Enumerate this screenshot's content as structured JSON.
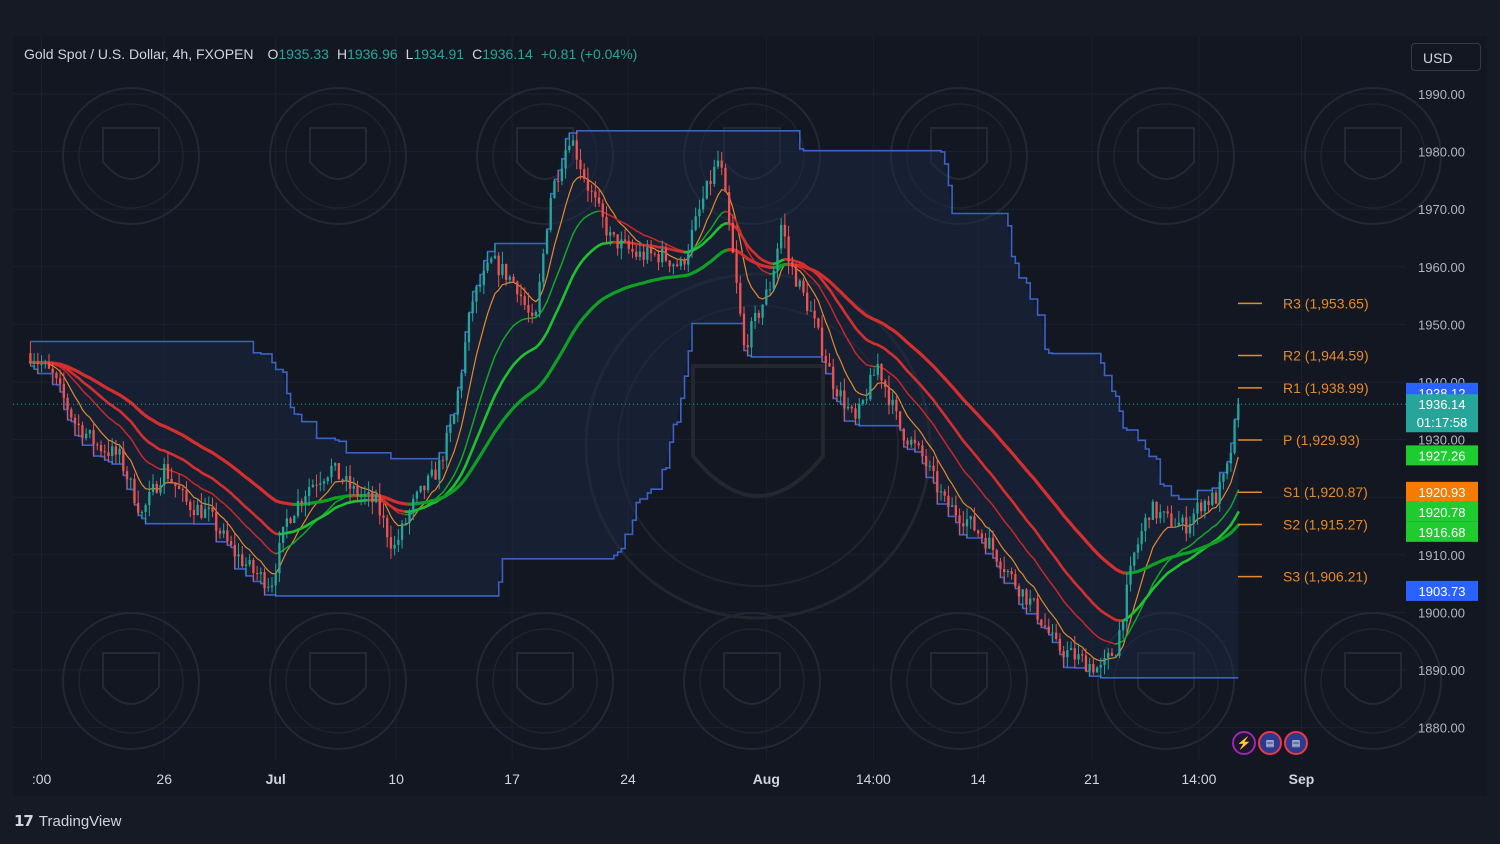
{
  "header": {
    "symbol": "Gold Spot / U.S. Dollar, 4h, FXOPEN",
    "open_label": "O",
    "open": "1935.33",
    "high_label": "H",
    "high": "1936.96",
    "low_label": "L",
    "low": "1934.91",
    "close_label": "C",
    "close": "1936.14",
    "change": "+0.81 (+0.04%)"
  },
  "currency_button": "USD",
  "branding": {
    "logo_glyph": "𝟭𝟳",
    "name": "TradingView"
  },
  "colors": {
    "bg": "#131722",
    "up": "#26a69a",
    "down": "#ef5350",
    "channel": "#3a62c9",
    "ema_green": "#1fc12f",
    "ema_red": "#d32f2f",
    "orange": "#e58a2a"
  },
  "events": [
    "bolt-icon",
    "us-flag-icon",
    "us-flag-icon"
  ],
  "chart_data": {
    "type": "candlestick",
    "ylim": [
      1875,
      1995
    ],
    "y_ticks": [
      "1990.00",
      "1980.00",
      "1970.00",
      "1960.00",
      "1950.00",
      "1940.00",
      "1930.00",
      "1920.00",
      "1910.00",
      "1900.00",
      "1890.00",
      "1880.00"
    ],
    "x_ticks": [
      {
        "label": ":00",
        "day": -1.5,
        "bold": false
      },
      {
        "label": "26",
        "day": 4.0,
        "bold": false
      },
      {
        "label": "Jul",
        "day": 9.0,
        "bold": true
      },
      {
        "label": "10",
        "day": 14.4,
        "bold": false
      },
      {
        "label": "17",
        "day": 19.6,
        "bold": false
      },
      {
        "label": "24",
        "day": 24.8,
        "bold": false
      },
      {
        "label": "Aug",
        "day": 31.0,
        "bold": true
      },
      {
        "label": "14:00",
        "day": 35.8,
        "bold": false
      },
      {
        "label": "14",
        "day": 40.5,
        "bold": false
      },
      {
        "label": "21",
        "day": 45.6,
        "bold": false
      },
      {
        "label": "14:00",
        "day": 50.4,
        "bold": false
      },
      {
        "label": "Sep",
        "day": 55.0,
        "bold": true
      }
    ],
    "anchors": [
      [
        -2,
        1945
      ],
      [
        -1,
        1941
      ],
      [
        0,
        1933
      ],
      [
        1,
        1929
      ],
      [
        2,
        1927
      ],
      [
        3,
        1917
      ],
      [
        4,
        1925
      ],
      [
        5,
        1919
      ],
      [
        6,
        1917
      ],
      [
        7,
        1911
      ],
      [
        8,
        1907
      ],
      [
        8.8,
        1905
      ],
      [
        9.5,
        1916
      ],
      [
        10.5,
        1922
      ],
      [
        11.5,
        1925
      ],
      [
        12.5,
        1921
      ],
      [
        13.5,
        1919
      ],
      [
        14.3,
        1911
      ],
      [
        15.2,
        1919
      ],
      [
        16.3,
        1925
      ],
      [
        17.0,
        1934
      ],
      [
        17.8,
        1954
      ],
      [
        18.7,
        1961
      ],
      [
        19.8,
        1957
      ],
      [
        20.6,
        1949
      ],
      [
        21.3,
        1972
      ],
      [
        22.2,
        1983
      ],
      [
        23.0,
        1974
      ],
      [
        24.0,
        1965
      ],
      [
        25.2,
        1962
      ],
      [
        26.3,
        1962
      ],
      [
        27.2,
        1960
      ],
      [
        28.2,
        1972
      ],
      [
        28.9,
        1979
      ],
      [
        29.4,
        1965
      ],
      [
        30.0,
        1946
      ],
      [
        31.2,
        1957
      ],
      [
        31.7,
        1968
      ],
      [
        32.0,
        1961
      ],
      [
        33.0,
        1952
      ],
      [
        34.0,
        1940
      ],
      [
        35.0,
        1933
      ],
      [
        36.0,
        1943
      ],
      [
        37.0,
        1932
      ],
      [
        38.0,
        1927
      ],
      [
        39.0,
        1919
      ],
      [
        40.0,
        1916
      ],
      [
        41.0,
        1912
      ],
      [
        42.0,
        1906
      ],
      [
        43.0,
        1901
      ],
      [
        44.0,
        1894
      ],
      [
        45.0,
        1892
      ],
      [
        46.0,
        1890
      ],
      [
        46.7,
        1894
      ],
      [
        47.5,
        1910
      ],
      [
        48.2,
        1918
      ],
      [
        49.0,
        1916
      ],
      [
        49.8,
        1915
      ],
      [
        50.5,
        1919
      ],
      [
        51.2,
        1920
      ],
      [
        51.7,
        1925
      ],
      [
        52.0,
        1932
      ],
      [
        52.3,
        1936
      ]
    ],
    "last_price": 1936.14,
    "current_countdown": "01:17:58",
    "price_labels": [
      {
        "value": 1938.12,
        "text": "1938.12",
        "color": "#2962ff"
      },
      {
        "value": 1927.26,
        "text": "1927.26",
        "color": "#1fcc30"
      },
      {
        "value": 1920.93,
        "text": "1920.93",
        "color": "#f57c00"
      },
      {
        "value": 1920.78,
        "text": "1920.78",
        "color": "#1fcc30"
      },
      {
        "value": 1916.68,
        "text": "1916.68",
        "color": "#1fcc30"
      },
      {
        "value": 1903.73,
        "text": "1903.73",
        "color": "#2962ff"
      }
    ],
    "pivots": [
      {
        "name": "R3",
        "value": 1953.65,
        "text": "R3 (1,953.65)"
      },
      {
        "name": "R2",
        "value": 1944.59,
        "text": "R2 (1,944.59)"
      },
      {
        "name": "R1",
        "value": 1938.99,
        "text": "R1 (1,938.99)"
      },
      {
        "name": "P",
        "value": 1929.93,
        "text": "P (1,929.93)"
      },
      {
        "name": "S1",
        "value": 1920.87,
        "text": "S1 (1,920.87)"
      },
      {
        "name": "S2",
        "value": 1915.27,
        "text": "S2 (1,915.27)"
      },
      {
        "name": "S3",
        "value": 1906.21,
        "text": "S3 (1,906.21)"
      }
    ],
    "series": [
      {
        "kind": "donchian-channel",
        "color": "#3a62c9"
      },
      {
        "kind": "ema-fast",
        "color": "#1fc12f"
      },
      {
        "kind": "ema-slow",
        "color": "#0f9f24"
      },
      {
        "kind": "ema-red",
        "color": "#d32f2f"
      },
      {
        "kind": "ema-orange",
        "color": "#e58a2a"
      }
    ]
  }
}
